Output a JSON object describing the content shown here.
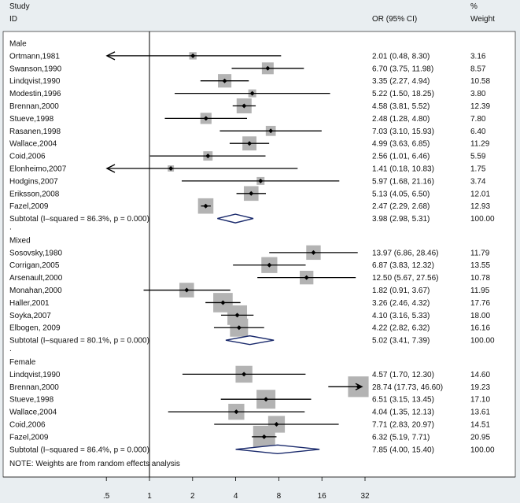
{
  "chart_data": {
    "type": "forest",
    "scale": "log",
    "x_ticks": [
      ".5",
      "1",
      "2",
      "4",
      "8",
      "16",
      "32"
    ],
    "x_tick_values": [
      0.5,
      1,
      2,
      4,
      8,
      16,
      32
    ],
    "reference_line": 1,
    "header": {
      "study": "Study",
      "id": "ID",
      "or_ci": "OR (95% CI)",
      "pct": "%",
      "weight": "Weight"
    },
    "groups": [
      {
        "name": "Male",
        "studies": [
          {
            "label": "Ortmann,1981",
            "or": 2.01,
            "lo": 0.48,
            "hi": 8.3,
            "ci_text": "2.01 (0.48, 8.30)",
            "weight": "3.16",
            "clipped_left": true
          },
          {
            "label": "Swanson,1990",
            "or": 6.7,
            "lo": 3.75,
            "hi": 11.98,
            "ci_text": "6.70 (3.75, 11.98)",
            "weight": "8.57"
          },
          {
            "label": "Lindqvist,1990",
            "or": 3.35,
            "lo": 2.27,
            "hi": 4.94,
            "ci_text": "3.35 (2.27, 4.94)",
            "weight": "10.58"
          },
          {
            "label": "Modestin,1996",
            "or": 5.22,
            "lo": 1.5,
            "hi": 18.25,
            "ci_text": "5.22 (1.50, 18.25)",
            "weight": "3.80"
          },
          {
            "label": "Brennan,2000",
            "or": 4.58,
            "lo": 3.81,
            "hi": 5.52,
            "ci_text": "4.58 (3.81, 5.52)",
            "weight": "12.39"
          },
          {
            "label": "Stueve,1998",
            "or": 2.48,
            "lo": 1.28,
            "hi": 4.8,
            "ci_text": "2.48 (1.28, 4.80)",
            "weight": "7.80"
          },
          {
            "label": "Rasanen,1998",
            "or": 7.03,
            "lo": 3.1,
            "hi": 15.93,
            "ci_text": "7.03 (3.10, 15.93)",
            "weight": "6.40"
          },
          {
            "label": "Wallace,2004",
            "or": 4.99,
            "lo": 3.63,
            "hi": 6.85,
            "ci_text": "4.99 (3.63, 6.85)",
            "weight": "11.29"
          },
          {
            "label": "Coid,2006",
            "or": 2.56,
            "lo": 1.01,
            "hi": 6.46,
            "ci_text": "2.56 (1.01, 6.46)",
            "weight": "5.59"
          },
          {
            "label": "Elonheimo,2007",
            "or": 1.41,
            "lo": 0.18,
            "hi": 10.83,
            "ci_text": "1.41 (0.18, 10.83)",
            "weight": "1.75",
            "clipped_left": true
          },
          {
            "label": "Hodgins,2007",
            "or": 5.97,
            "lo": 1.68,
            "hi": 21.16,
            "ci_text": "5.97 (1.68, 21.16)",
            "weight": "3.74"
          },
          {
            "label": "Eriksson,2008",
            "or": 5.13,
            "lo": 4.05,
            "hi": 6.5,
            "ci_text": "5.13 (4.05, 6.50)",
            "weight": "12.01"
          },
          {
            "label": "Fazel,2009",
            "or": 2.47,
            "lo": 2.29,
            "hi": 2.68,
            "ci_text": "2.47 (2.29, 2.68)",
            "weight": "12.93"
          }
        ],
        "subtotal": {
          "label": "Subtotal  (I–squared = 86.3%, p = 0.000)",
          "or": 3.98,
          "lo": 2.98,
          "hi": 5.31,
          "ci_text": "3.98 (2.98, 5.31)",
          "weight": "100.00"
        }
      },
      {
        "name": "Mixed",
        "studies": [
          {
            "label": "Sosovsky,1980",
            "or": 13.97,
            "lo": 6.86,
            "hi": 28.46,
            "ci_text": "13.97 (6.86, 28.46)",
            "weight": "11.79"
          },
          {
            "label": "Corrigan,2005",
            "or": 6.87,
            "lo": 3.83,
            "hi": 12.32,
            "ci_text": "6.87 (3.83, 12.32)",
            "weight": "13.55"
          },
          {
            "label": "Arsenault,2000",
            "or": 12.5,
            "lo": 5.67,
            "hi": 27.56,
            "ci_text": "12.50 (5.67, 27.56)",
            "weight": "10.78"
          },
          {
            "label": "Monahan,2000",
            "or": 1.82,
            "lo": 0.91,
            "hi": 3.67,
            "ci_text": "1.82 (0.91, 3.67)",
            "weight": "11.95"
          },
          {
            "label": "Haller,2001",
            "or": 3.26,
            "lo": 2.46,
            "hi": 4.32,
            "ci_text": "3.26 (2.46, 4.32)",
            "weight": "17.76"
          },
          {
            "label": "Soyka,2007",
            "or": 4.1,
            "lo": 3.16,
            "hi": 5.33,
            "ci_text": "4.10 (3.16, 5.33)",
            "weight": "18.00"
          },
          {
            "label": "Elbogen, 2009",
            "or": 4.22,
            "lo": 2.82,
            "hi": 6.32,
            "ci_text": "4.22 (2.82, 6.32)",
            "weight": "16.16"
          }
        ],
        "subtotal": {
          "label": "Subtotal  (I–squared = 80.1%, p = 0.000)",
          "or": 5.02,
          "lo": 3.41,
          "hi": 7.39,
          "ci_text": "5.02 (3.41, 7.39)",
          "weight": "100.00"
        }
      },
      {
        "name": "Female",
        "studies": [
          {
            "label": "Lindqvist,1990",
            "or": 4.57,
            "lo": 1.7,
            "hi": 12.3,
            "ci_text": "4.57 (1.70, 12.30)",
            "weight": "14.60"
          },
          {
            "label": "Brennan,2000",
            "or": 28.74,
            "lo": 17.73,
            "hi": 46.6,
            "ci_text": "28.74 (17.73, 46.60)",
            "weight": "19.23",
            "clipped_right": true
          },
          {
            "label": "Stueve,1998",
            "or": 6.51,
            "lo": 3.15,
            "hi": 13.45,
            "ci_text": "6.51 (3.15, 13.45)",
            "weight": "17.10"
          },
          {
            "label": "Wallace,2004",
            "or": 4.04,
            "lo": 1.35,
            "hi": 12.13,
            "ci_text": "4.04 (1.35, 12.13)",
            "weight": "13.61"
          },
          {
            "label": "Coid,2006",
            "or": 7.71,
            "lo": 2.83,
            "hi": 20.97,
            "ci_text": "7.71 (2.83, 20.97)",
            "weight": "14.51"
          },
          {
            "label": "Fazel,2009",
            "or": 6.32,
            "lo": 5.19,
            "hi": 7.71,
            "ci_text": "6.32 (5.19, 7.71)",
            "weight": "20.95"
          }
        ],
        "subtotal": {
          "label": "Subtotal  (I–squared = 86.4%, p = 0.000)",
          "or": 7.85,
          "lo": 4.0,
          "hi": 15.4,
          "ci_text": "7.85 (4.00, 15.40)",
          "weight": "100.00"
        }
      }
    ],
    "separator": ".",
    "note": "NOTE: Weights are from random effects analysis",
    "colors": {
      "background": "#e9eef1",
      "plot": "#ffffff",
      "box": "#b3b3b3",
      "diamond": "#1a2a6c",
      "line": "#000000"
    }
  }
}
